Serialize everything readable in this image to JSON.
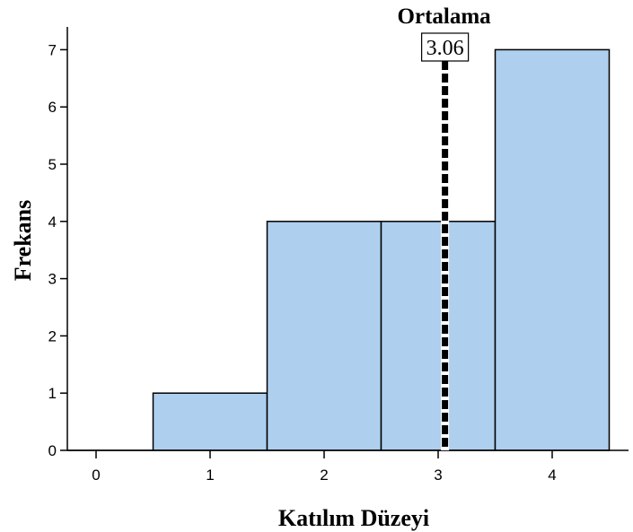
{
  "chart_data": {
    "type": "bar",
    "subtype": "histogram",
    "bins": [
      {
        "start": -0.5,
        "end": 0.5,
        "count": 0
      },
      {
        "start": 0.5,
        "end": 1.5,
        "count": 1
      },
      {
        "start": 1.5,
        "end": 2.5,
        "count": 4
      },
      {
        "start": 2.5,
        "end": 3.5,
        "count": 4
      },
      {
        "start": 3.5,
        "end": 4.5,
        "count": 7
      }
    ],
    "xlabel": "Katılım Düzeyi",
    "ylabel": "Frekans",
    "xticks": [
      "0",
      "1",
      "2",
      "3",
      "4"
    ],
    "yticks": [
      "0",
      "1",
      "2",
      "3",
      "4",
      "5",
      "6",
      "7"
    ],
    "xlim": [
      -0.25,
      4.75
    ],
    "ylim": [
      0,
      7.3
    ],
    "mean_line": {
      "label": "Ortalama",
      "value": 3.06,
      "value_label": "3.06"
    },
    "bar_color": "#aecfee",
    "edge_color": "#000000",
    "grid": false
  }
}
